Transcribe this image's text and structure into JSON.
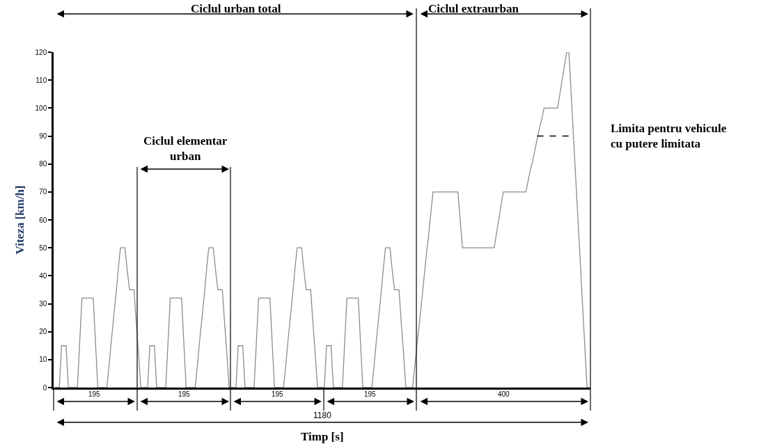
{
  "chart_data": {
    "type": "line",
    "xlabel": "Timp [s]",
    "ylabel": "Viteza [km/h]",
    "categories": [
      null,
      null,
      null,
      null,
      null,
      null,
      null,
      null,
      null,
      null,
      null,
      null,
      null,
      null,
      null,
      null,
      null,
      null,
      null,
      null,
      null,
      null,
      null,
      null,
      null,
      null,
      null,
      null,
      null,
      null,
      null,
      null,
      null,
      null,
      null,
      null,
      null,
      null,
      null,
      null,
      null,
      null,
      null,
      null,
      null,
      null,
      null,
      null,
      null,
      null,
      null,
      null,
      null,
      null,
      null,
      null,
      null,
      null,
      null,
      null,
      null,
      null,
      null,
      null,
      null,
      null,
      null,
      null,
      null,
      null,
      null,
      null,
      null,
      null,
      null,
      null,
      null,
      null,
      null,
      null,
      null,
      null,
      null,
      null,
      null,
      null,
      null,
      null,
      null,
      null,
      null,
      null,
      null,
      null,
      null,
      null,
      null,
      null,
      null,
      null,
      null,
      null,
      null,
      null,
      null,
      null,
      null,
      null,
      null,
      null,
      null,
      null,
      null,
      null,
      null,
      null,
      null,
      null,
      null,
      null,
      null,
      null,
      null,
      null,
      null,
      null,
      null,
      null,
      null,
      null,
      null,
      null,
      null,
      null,
      null,
      null,
      null,
      null,
      null,
      null,
      null,
      null,
      null,
      null,
      null,
      null,
      null,
      null,
      null,
      null,
      null,
      null,
      null,
      null,
      null,
      null,
      null,
      null,
      null,
      null,
      null,
      null,
      null,
      null,
      null,
      null,
      null,
      null,
      null,
      null,
      null,
      null,
      null,
      null,
      null,
      null,
      null,
      null,
      null,
      null,
      null,
      null,
      null,
      null,
      null,
      null,
      null,
      null,
      null,
      null,
      null,
      null,
      null,
      null,
      null,
      null,
      null,
      null,
      null,
      null,
      null,
      null,
      null,
      null,
      null,
      null,
      null,
      null,
      null,
      null,
      null,
      null,
      null,
      null,
      null,
      null,
      null,
      null,
      null,
      null,
      null,
      null,
      null,
      null,
      null,
      null,
      null,
      null,
      null,
      null,
      null,
      null,
      null,
      null,
      null,
      null,
      null
    ],
    "ylim": [
      0,
      120
    ],
    "yticks": [
      0,
      10,
      20,
      30,
      40,
      50,
      60,
      70,
      80,
      90,
      100,
      110,
      120
    ],
    "tick_labels": "y",
    "grid": false,
    "legend": false,
    "marker": "none",
    "series": [
      {
        "color": "#8c8c8c",
        "line_style": "solid",
        "values": [
          0,
          0,
          0,
          15,
          15,
          15,
          0,
          0,
          0,
          0,
          0,
          16,
          32,
          32,
          32,
          32,
          32,
          32,
          16,
          0,
          0,
          0,
          0,
          0,
          8,
          17,
          25,
          33,
          42,
          50,
          50,
          50,
          42,
          35,
          35,
          35,
          23,
          12,
          0,
          0,
          0,
          0,
          15,
          15,
          15,
          0,
          0,
          0,
          0,
          0,
          16,
          32,
          32,
          32,
          32,
          32,
          32,
          16,
          0,
          0,
          0,
          0,
          0,
          8,
          17,
          25,
          33,
          42,
          50,
          50,
          50,
          42,
          35,
          35,
          35,
          23,
          12,
          0,
          0,
          0,
          0,
          15,
          15,
          15,
          0,
          0,
          0,
          0,
          0,
          16,
          32,
          32,
          32,
          32,
          32,
          32,
          16,
          0,
          0,
          0,
          0,
          0,
          8,
          17,
          25,
          33,
          42,
          50,
          50,
          50,
          42,
          35,
          35,
          35,
          23,
          12,
          0,
          0,
          0,
          0,
          15,
          15,
          15,
          0,
          0,
          0,
          0,
          0,
          16,
          32,
          32,
          32,
          32,
          32,
          32,
          16,
          0,
          0,
          0,
          0,
          0,
          8,
          17,
          25,
          33,
          42,
          50,
          50,
          50,
          42,
          35,
          35,
          35,
          23,
          12,
          0,
          0,
          0,
          0,
          8,
          16,
          23,
          31,
          39,
          47,
          54,
          62,
          70,
          70,
          70,
          70,
          70,
          70,
          70,
          70,
          70,
          70,
          70,
          70,
          60,
          50,
          50,
          50,
          50,
          50,
          50,
          50,
          50,
          50,
          50,
          50,
          50,
          50,
          50,
          50,
          55,
          60,
          65,
          70,
          70,
          70,
          70,
          70,
          70,
          70,
          70,
          70,
          70,
          70,
          74,
          78,
          81,
          85,
          89,
          93,
          96,
          100,
          100,
          100,
          100,
          100,
          100,
          100,
          105,
          110,
          115,
          120,
          120,
          105,
          90,
          75,
          60,
          45,
          30,
          15,
          0,
          0
        ]
      },
      {
        "name": "Limita pentru vehicule\ncu putere limitata",
        "color": "#000000",
        "line_style": "dashed",
        "values": [
          null,
          null,
          null,
          null,
          null,
          null,
          null,
          null,
          null,
          null,
          null,
          null,
          null,
          null,
          null,
          null,
          null,
          null,
          null,
          null,
          null,
          null,
          null,
          null,
          null,
          null,
          null,
          null,
          null,
          null,
          null,
          null,
          null,
          null,
          null,
          null,
          null,
          null,
          null,
          null,
          null,
          null,
          null,
          null,
          null,
          null,
          null,
          null,
          null,
          null,
          null,
          null,
          null,
          null,
          null,
          null,
          null,
          null,
          null,
          null,
          null,
          null,
          null,
          null,
          null,
          null,
          null,
          null,
          null,
          null,
          null,
          null,
          null,
          null,
          null,
          null,
          null,
          null,
          null,
          null,
          null,
          null,
          null,
          null,
          null,
          null,
          null,
          null,
          null,
          null,
          null,
          null,
          null,
          null,
          null,
          null,
          null,
          null,
          null,
          null,
          null,
          null,
          null,
          null,
          null,
          null,
          null,
          null,
          null,
          null,
          null,
          null,
          null,
          null,
          null,
          null,
          null,
          null,
          null,
          null,
          null,
          null,
          null,
          null,
          null,
          null,
          null,
          null,
          null,
          null,
          null,
          null,
          null,
          null,
          null,
          null,
          null,
          null,
          null,
          null,
          null,
          null,
          null,
          null,
          null,
          null,
          null,
          null,
          null,
          null,
          null,
          null,
          null,
          null,
          null,
          null,
          null,
          null,
          null,
          null,
          null,
          null,
          null,
          null,
          null,
          null,
          null,
          null,
          null,
          null,
          null,
          null,
          null,
          null,
          null,
          null,
          null,
          null,
          null,
          null,
          null,
          null,
          null,
          null,
          null,
          null,
          null,
          null,
          null,
          null,
          null,
          null,
          null,
          null,
          null,
          null,
          null,
          null,
          null,
          null,
          null,
          null,
          null,
          null,
          null,
          null,
          null,
          null,
          null,
          null,
          null,
          null,
          null,
          90,
          90,
          90,
          90,
          90,
          90,
          90,
          90,
          90,
          90,
          90,
          90,
          90,
          90,
          90,
          90,
          90,
          null,
          null,
          null,
          null,
          null,
          null,
          null
        ]
      }
    ],
    "annotations": [
      "Ciclul urban total",
      "Ciclul extraurban",
      "Ciclul elementar\nurban",
      "195",
      "195",
      "195",
      "195",
      "400",
      "1180"
    ]
  }
}
